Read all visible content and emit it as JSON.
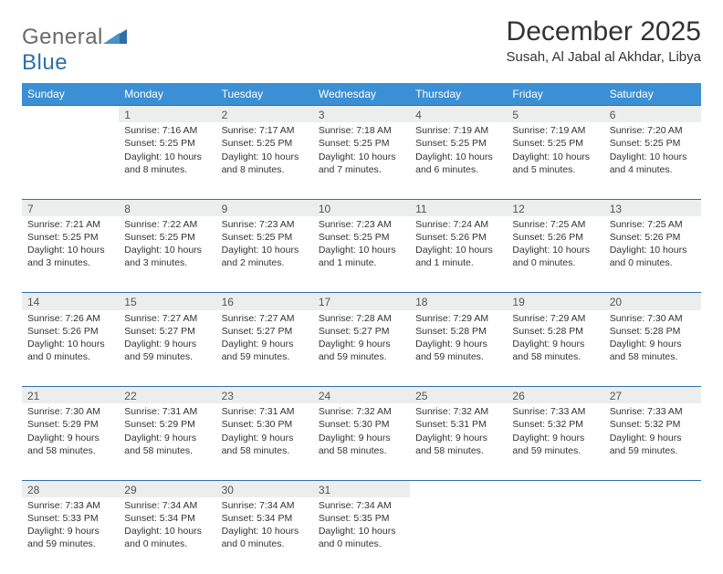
{
  "logo": {
    "text1": "General",
    "text2": "Blue",
    "color_general": "#6a6a6a",
    "color_blue": "#2f6fa8",
    "shape_color": "#2f6fa8"
  },
  "header": {
    "month_title": "December 2025",
    "location": "Susah, Al Jabal al Akhdar, Libya"
  },
  "style": {
    "header_bg": "#3b8fd4",
    "header_text": "#ffffff",
    "daynum_bg": "#eceded",
    "rule_color": "#2f6fa8",
    "body_text": "#333333",
    "font_size_title": 30,
    "font_size_location": 15,
    "font_size_th": 12,
    "font_size_cell": 10.5
  },
  "weekdays": [
    "Sunday",
    "Monday",
    "Tuesday",
    "Wednesday",
    "Thursday",
    "Friday",
    "Saturday"
  ],
  "weeks": [
    [
      null,
      {
        "n": "1",
        "sr": "Sunrise: 7:16 AM",
        "ss": "Sunset: 5:25 PM",
        "dl": "Daylight: 10 hours and 8 minutes."
      },
      {
        "n": "2",
        "sr": "Sunrise: 7:17 AM",
        "ss": "Sunset: 5:25 PM",
        "dl": "Daylight: 10 hours and 8 minutes."
      },
      {
        "n": "3",
        "sr": "Sunrise: 7:18 AM",
        "ss": "Sunset: 5:25 PM",
        "dl": "Daylight: 10 hours and 7 minutes."
      },
      {
        "n": "4",
        "sr": "Sunrise: 7:19 AM",
        "ss": "Sunset: 5:25 PM",
        "dl": "Daylight: 10 hours and 6 minutes."
      },
      {
        "n": "5",
        "sr": "Sunrise: 7:19 AM",
        "ss": "Sunset: 5:25 PM",
        "dl": "Daylight: 10 hours and 5 minutes."
      },
      {
        "n": "6",
        "sr": "Sunrise: 7:20 AM",
        "ss": "Sunset: 5:25 PM",
        "dl": "Daylight: 10 hours and 4 minutes."
      }
    ],
    [
      {
        "n": "7",
        "sr": "Sunrise: 7:21 AM",
        "ss": "Sunset: 5:25 PM",
        "dl": "Daylight: 10 hours and 3 minutes."
      },
      {
        "n": "8",
        "sr": "Sunrise: 7:22 AM",
        "ss": "Sunset: 5:25 PM",
        "dl": "Daylight: 10 hours and 3 minutes."
      },
      {
        "n": "9",
        "sr": "Sunrise: 7:23 AM",
        "ss": "Sunset: 5:25 PM",
        "dl": "Daylight: 10 hours and 2 minutes."
      },
      {
        "n": "10",
        "sr": "Sunrise: 7:23 AM",
        "ss": "Sunset: 5:25 PM",
        "dl": "Daylight: 10 hours and 1 minute."
      },
      {
        "n": "11",
        "sr": "Sunrise: 7:24 AM",
        "ss": "Sunset: 5:26 PM",
        "dl": "Daylight: 10 hours and 1 minute."
      },
      {
        "n": "12",
        "sr": "Sunrise: 7:25 AM",
        "ss": "Sunset: 5:26 PM",
        "dl": "Daylight: 10 hours and 0 minutes."
      },
      {
        "n": "13",
        "sr": "Sunrise: 7:25 AM",
        "ss": "Sunset: 5:26 PM",
        "dl": "Daylight: 10 hours and 0 minutes."
      }
    ],
    [
      {
        "n": "14",
        "sr": "Sunrise: 7:26 AM",
        "ss": "Sunset: 5:26 PM",
        "dl": "Daylight: 10 hours and 0 minutes."
      },
      {
        "n": "15",
        "sr": "Sunrise: 7:27 AM",
        "ss": "Sunset: 5:27 PM",
        "dl": "Daylight: 9 hours and 59 minutes."
      },
      {
        "n": "16",
        "sr": "Sunrise: 7:27 AM",
        "ss": "Sunset: 5:27 PM",
        "dl": "Daylight: 9 hours and 59 minutes."
      },
      {
        "n": "17",
        "sr": "Sunrise: 7:28 AM",
        "ss": "Sunset: 5:27 PM",
        "dl": "Daylight: 9 hours and 59 minutes."
      },
      {
        "n": "18",
        "sr": "Sunrise: 7:29 AM",
        "ss": "Sunset: 5:28 PM",
        "dl": "Daylight: 9 hours and 59 minutes."
      },
      {
        "n": "19",
        "sr": "Sunrise: 7:29 AM",
        "ss": "Sunset: 5:28 PM",
        "dl": "Daylight: 9 hours and 58 minutes."
      },
      {
        "n": "20",
        "sr": "Sunrise: 7:30 AM",
        "ss": "Sunset: 5:28 PM",
        "dl": "Daylight: 9 hours and 58 minutes."
      }
    ],
    [
      {
        "n": "21",
        "sr": "Sunrise: 7:30 AM",
        "ss": "Sunset: 5:29 PM",
        "dl": "Daylight: 9 hours and 58 minutes."
      },
      {
        "n": "22",
        "sr": "Sunrise: 7:31 AM",
        "ss": "Sunset: 5:29 PM",
        "dl": "Daylight: 9 hours and 58 minutes."
      },
      {
        "n": "23",
        "sr": "Sunrise: 7:31 AM",
        "ss": "Sunset: 5:30 PM",
        "dl": "Daylight: 9 hours and 58 minutes."
      },
      {
        "n": "24",
        "sr": "Sunrise: 7:32 AM",
        "ss": "Sunset: 5:30 PM",
        "dl": "Daylight: 9 hours and 58 minutes."
      },
      {
        "n": "25",
        "sr": "Sunrise: 7:32 AM",
        "ss": "Sunset: 5:31 PM",
        "dl": "Daylight: 9 hours and 58 minutes."
      },
      {
        "n": "26",
        "sr": "Sunrise: 7:33 AM",
        "ss": "Sunset: 5:32 PM",
        "dl": "Daylight: 9 hours and 59 minutes."
      },
      {
        "n": "27",
        "sr": "Sunrise: 7:33 AM",
        "ss": "Sunset: 5:32 PM",
        "dl": "Daylight: 9 hours and 59 minutes."
      }
    ],
    [
      {
        "n": "28",
        "sr": "Sunrise: 7:33 AM",
        "ss": "Sunset: 5:33 PM",
        "dl": "Daylight: 9 hours and 59 minutes."
      },
      {
        "n": "29",
        "sr": "Sunrise: 7:34 AM",
        "ss": "Sunset: 5:34 PM",
        "dl": "Daylight: 10 hours and 0 minutes."
      },
      {
        "n": "30",
        "sr": "Sunrise: 7:34 AM",
        "ss": "Sunset: 5:34 PM",
        "dl": "Daylight: 10 hours and 0 minutes."
      },
      {
        "n": "31",
        "sr": "Sunrise: 7:34 AM",
        "ss": "Sunset: 5:35 PM",
        "dl": "Daylight: 10 hours and 0 minutes."
      },
      null,
      null,
      null
    ]
  ]
}
